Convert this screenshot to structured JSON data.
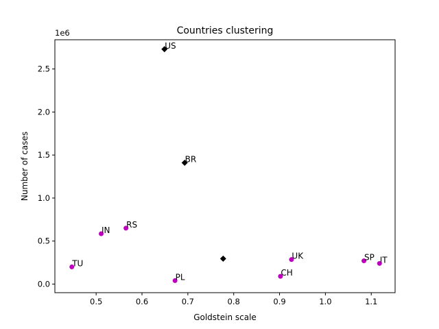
{
  "chart_data": {
    "type": "scatter",
    "title": "Countries clustering",
    "xlabel": "Goldstein scale",
    "ylabel": "Number of cases",
    "offset_label": "1e6",
    "xlim": [
      0.41,
      1.152
    ],
    "ylim": [
      -100000,
      2840000
    ],
    "x_ticks": [
      0.5,
      0.6,
      0.7,
      0.8,
      0.9,
      1.0,
      1.1
    ],
    "x_tick_labels": [
      "0.5",
      "0.6",
      "0.7",
      "0.8",
      "0.9",
      "1.0",
      "1.1"
    ],
    "y_ticks": [
      0,
      500000,
      1000000,
      1500000,
      2000000,
      2500000
    ],
    "y_tick_labels": [
      "0.0",
      "0.5",
      "1.0",
      "1.5",
      "2.0",
      "2.5"
    ],
    "grid": false,
    "series": [
      {
        "marker": "circle",
        "color": "#bf00bf",
        "points": [
          {
            "x": 0.447,
            "y": 200000,
            "label": "TU"
          },
          {
            "x": 0.511,
            "y": 585000,
            "label": "IN"
          },
          {
            "x": 0.565,
            "y": 650000,
            "label": "RS"
          },
          {
            "x": 0.672,
            "y": 40000,
            "label": "PL"
          },
          {
            "x": 0.902,
            "y": 90000,
            "label": "CH"
          },
          {
            "x": 0.926,
            "y": 285000,
            "label": "UK"
          },
          {
            "x": 1.084,
            "y": 270000,
            "label": "SP"
          },
          {
            "x": 1.118,
            "y": 240000,
            "label": "IT"
          }
        ]
      },
      {
        "marker": "diamond",
        "color": "#000000",
        "points": [
          {
            "x": 0.649,
            "y": 2730000,
            "label": "US"
          },
          {
            "x": 0.693,
            "y": 1410000,
            "label": "BR"
          },
          {
            "x": 0.777,
            "y": 295000,
            "label": ""
          }
        ]
      }
    ]
  }
}
